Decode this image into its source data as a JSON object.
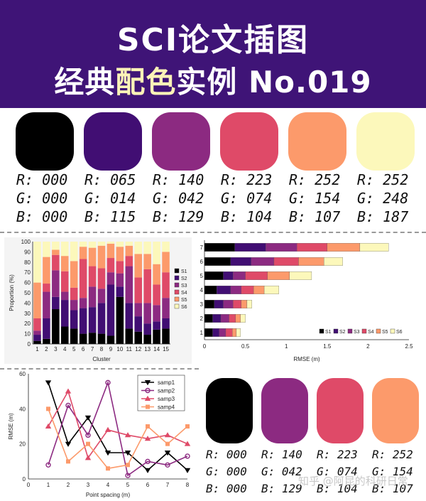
{
  "header": {
    "line1": "SCI论文插图",
    "line2_prefix": "经典",
    "line2_highlight": "配色",
    "line2_suffix": "实例 No.019"
  },
  "palette": [
    {
      "color": "#000000",
      "r": "R: 000",
      "g": "G: 000",
      "b": "B: 000"
    },
    {
      "color": "#410e73",
      "r": "R: 065",
      "g": "G: 014",
      "b": "B: 115"
    },
    {
      "color": "#8c2a81",
      "r": "R: 140",
      "g": "G: 042",
      "b": "B: 129"
    },
    {
      "color": "#df4a68",
      "r": "R: 223",
      "g": "G: 074",
      "b": "B: 104"
    },
    {
      "color": "#fc9a6b",
      "r": "R: 252",
      "g": "G: 154",
      "b": "B: 107"
    },
    {
      "color": "#fcf8bb",
      "r": "R: 252",
      "g": "G: 248",
      "b": "B: 187"
    }
  ],
  "palette2": [
    {
      "color": "#000000",
      "r": "R: 000",
      "g": "G: 000",
      "b": "B: 000"
    },
    {
      "color": "#8c2a81",
      "r": "R: 140",
      "g": "G: 042",
      "b": "B: 129"
    },
    {
      "color": "#df4a68",
      "r": "R: 223",
      "g": "G: 074",
      "b": "B: 104"
    },
    {
      "color": "#fc9a6b",
      "r": "R: 252",
      "g": "G: 154",
      "b": "B: 107"
    }
  ],
  "watermark": "知乎 @阿昆的科研日常",
  "chart_data": [
    {
      "type": "bar",
      "stacked": true,
      "xlabel": "Cluster",
      "ylabel": "Proportion (%)",
      "ylim": [
        0,
        100
      ],
      "yticks": [
        0,
        10,
        20,
        30,
        40,
        50,
        60,
        70,
        80,
        90,
        100
      ],
      "categories": [
        "1",
        "2",
        "3",
        "4",
        "5",
        "6",
        "7",
        "8",
        "9",
        "10",
        "11",
        "12",
        "13",
        "14",
        "15"
      ],
      "legend": "right",
      "series": [
        {
          "name": "S1",
          "color": "#000000",
          "values": [
            3,
            5,
            34,
            17,
            15,
            10,
            11,
            10,
            8,
            46,
            15,
            12,
            9,
            14,
            15
          ]
        },
        {
          "name": "S2",
          "color": "#410e73",
          "values": [
            6,
            20,
            12,
            26,
            18,
            25,
            25,
            30,
            50,
            10,
            25,
            15,
            11,
            8,
            10
          ]
        },
        {
          "name": "S3",
          "color": "#8c2a81",
          "values": [
            4,
            26,
            26,
            8,
            10,
            10,
            20,
            14,
            12,
            13,
            36,
            13,
            20,
            16,
            20
          ]
        },
        {
          "name": "S4",
          "color": "#df4a68",
          "values": [
            12,
            8,
            15,
            20,
            12,
            38,
            20,
            20,
            14,
            12,
            10,
            25,
            33,
            20,
            25
          ]
        },
        {
          "name": "S5",
          "color": "#fc9a6b",
          "values": [
            35,
            26,
            5,
            15,
            26,
            12,
            18,
            22,
            14,
            14,
            10,
            23,
            15,
            20,
            20
          ]
        },
        {
          "name": "S6",
          "color": "#fcf8bb",
          "values": [
            40,
            15,
            8,
            14,
            19,
            5,
            6,
            4,
            2,
            5,
            4,
            12,
            12,
            22,
            10
          ]
        }
      ]
    },
    {
      "type": "bar",
      "orientation": "horizontal",
      "stacked": true,
      "xlabel": "RMSE (m)",
      "ylabel": "",
      "xlim": [
        0,
        2.5
      ],
      "xticks": [
        "0",
        "0.5",
        "1",
        "1.5",
        "2",
        "2.5"
      ],
      "categories": [
        "1",
        "2",
        "3",
        "4",
        "5",
        "6",
        "7"
      ],
      "legend": "bottom-right",
      "series": [
        {
          "name": "S1",
          "color": "#000000",
          "values": [
            0.1,
            0.1,
            0.12,
            0.15,
            0.23,
            0.32,
            0.37
          ]
        },
        {
          "name": "S2",
          "color": "#410e73",
          "values": [
            0.08,
            0.1,
            0.11,
            0.17,
            0.12,
            0.25,
            0.38
          ]
        },
        {
          "name": "S3",
          "color": "#8c2a81",
          "values": [
            0.08,
            0.1,
            0.12,
            0.13,
            0.15,
            0.28,
            0.38
          ]
        },
        {
          "name": "S4",
          "color": "#df4a68",
          "values": [
            0.08,
            0.08,
            0.1,
            0.15,
            0.27,
            0.3,
            0.37
          ]
        },
        {
          "name": "S5",
          "color": "#fc9a6b",
          "values": [
            0.05,
            0.06,
            0.07,
            0.13,
            0.27,
            0.31,
            0.4
          ]
        },
        {
          "name": "S6",
          "color": "#fcf8bb",
          "values": [
            0.05,
            0.06,
            0.06,
            0.18,
            0.27,
            0.23,
            0.35
          ]
        }
      ]
    },
    {
      "type": "line",
      "xlabel": "Point spacing (m)",
      "ylabel": "RMSE (m)",
      "xlim": [
        0,
        8
      ],
      "ylim": [
        0,
        60
      ],
      "xticks": [
        0,
        1,
        2,
        3,
        4,
        5,
        6,
        7,
        8
      ],
      "yticks": [
        0,
        20,
        40,
        60
      ],
      "legend": "top-right",
      "x": [
        1,
        2,
        3,
        4,
        5,
        6,
        7,
        8
      ],
      "series": [
        {
          "name": "samp1",
          "color": "#000000",
          "marker": "triangle-down",
          "values": [
            55,
            20,
            35,
            15,
            15,
            5,
            15,
            5
          ]
        },
        {
          "name": "samp2",
          "color": "#8c2a81",
          "marker": "circle",
          "values": [
            8,
            42,
            25,
            55,
            2,
            10,
            8,
            13
          ]
        },
        {
          "name": "samp3",
          "color": "#df4a68",
          "marker": "triangle-up",
          "values": [
            30,
            50,
            12,
            28,
            25,
            23,
            25,
            20
          ]
        },
        {
          "name": "samp4",
          "color": "#fc9a6b",
          "marker": "square",
          "values": [
            40,
            10,
            20,
            6,
            8,
            30,
            20,
            30
          ]
        }
      ]
    }
  ]
}
